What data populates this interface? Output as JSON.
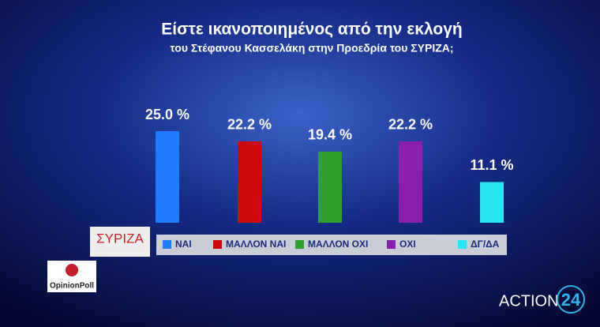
{
  "chart_data": {
    "type": "bar",
    "title": "Είστε ικανοποιημένος από την εκλογή",
    "subtitle": "του Στέφανου Κασσελάκη στην Προεδρία  του ΣΥΡΙΖΑ;",
    "categories": [
      "ΝΑΙ",
      "ΜΑΛΛΟΝ ΝΑΙ",
      "ΜΑΛΛΟΝ ΟΧΙ",
      "ΟΧΙ",
      "ΔΓ/ΔΑ"
    ],
    "values": [
      25.0,
      22.2,
      19.4,
      22.2,
      11.1
    ],
    "value_labels": [
      "25.0 %",
      "22.2 %",
      "19.4 %",
      "22.2 %",
      "11.1 %"
    ],
    "colors": [
      "#1f7dff",
      "#cc0a0a",
      "#2fa12c",
      "#8b1fae",
      "#27e6f2"
    ]
  },
  "party_logo": "ΣΥΡΙΖΑ",
  "pollster_logo": "OpinionPoll",
  "channel_logo": {
    "name": "ACTION",
    "number": "24"
  }
}
